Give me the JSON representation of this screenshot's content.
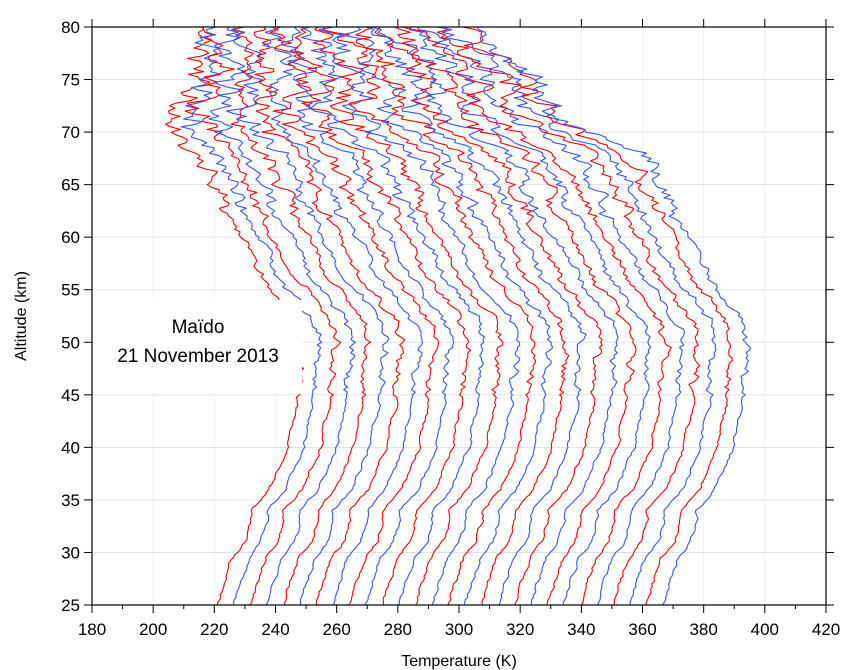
{
  "chart_data": {
    "type": "line",
    "title": "",
    "xlabel": "Temperature (K)",
    "ylabel": "Altitude (km)",
    "xlim": [
      180,
      420
    ],
    "ylim": [
      25,
      80
    ],
    "x_ticks": [
      180,
      200,
      220,
      240,
      260,
      280,
      300,
      320,
      340,
      360,
      380,
      400,
      420
    ],
    "y_ticks": [
      25,
      30,
      35,
      40,
      45,
      50,
      55,
      60,
      65,
      70,
      75,
      80
    ],
    "grid": true,
    "legend": "none",
    "annotation": {
      "lines": [
        "Maïdo",
        "21 November 2013"
      ]
    },
    "series_colors": [
      "#ff0000",
      "#3355ff"
    ],
    "profile_template": {
      "altitude_km": [
        25,
        27,
        29.5,
        31,
        33,
        34,
        36,
        38,
        40,
        42,
        44,
        46,
        48,
        50,
        51,
        52,
        54,
        56,
        58,
        60,
        62,
        64,
        66,
        68,
        70,
        72,
        74,
        76,
        78,
        80
      ],
      "temperature_K": [
        221,
        223,
        226,
        230,
        232,
        232,
        238,
        241,
        244,
        245,
        247,
        247,
        248,
        249,
        248,
        247,
        242,
        236,
        233,
        229,
        225,
        222,
        218,
        214,
        208,
        205,
        212,
        215,
        214,
        215
      ]
    },
    "series": [
      {
        "name": "",
        "color": "#ff0000",
        "offset_K": 0
      },
      {
        "name": "",
        "color": "#3355ff",
        "offset_K": 5.4
      },
      {
        "name": "",
        "color": "#ff0000",
        "offset_K": 10.8
      },
      {
        "name": "",
        "color": "#3355ff",
        "offset_K": 16.2
      },
      {
        "name": "",
        "color": "#ff0000",
        "offset_K": 21.6
      },
      {
        "name": "",
        "color": "#3355ff",
        "offset_K": 27.0
      },
      {
        "name": "",
        "color": "#ff0000",
        "offset_K": 32.4
      },
      {
        "name": "",
        "color": "#3355ff",
        "offset_K": 37.8
      },
      {
        "name": "",
        "color": "#ff0000",
        "offset_K": 43.2
      },
      {
        "name": "",
        "color": "#3355ff",
        "offset_K": 48.6
      },
      {
        "name": "",
        "color": "#ff0000",
        "offset_K": 54.0
      },
      {
        "name": "",
        "color": "#3355ff",
        "offset_K": 59.4
      },
      {
        "name": "",
        "color": "#ff0000",
        "offset_K": 64.8
      },
      {
        "name": "",
        "color": "#3355ff",
        "offset_K": 70.2
      },
      {
        "name": "",
        "color": "#ff0000",
        "offset_K": 75.6
      },
      {
        "name": "",
        "color": "#3355ff",
        "offset_K": 81.0
      },
      {
        "name": "",
        "color": "#ff0000",
        "offset_K": 86.4
      },
      {
        "name": "",
        "color": "#3355ff",
        "offset_K": 91.8
      },
      {
        "name": "",
        "color": "#ff0000",
        "offset_K": 97.2
      },
      {
        "name": "",
        "color": "#3355ff",
        "offset_K": 102.6
      },
      {
        "name": "",
        "color": "#ff0000",
        "offset_K": 108.0
      },
      {
        "name": "",
        "color": "#3355ff",
        "offset_K": 113.4
      },
      {
        "name": "",
        "color": "#ff0000",
        "offset_K": 118.8
      },
      {
        "name": "",
        "color": "#3355ff",
        "offset_K": 124.2
      },
      {
        "name": "",
        "color": "#ff0000",
        "offset_K": 129.6
      },
      {
        "name": "",
        "color": "#3355ff",
        "offset_K": 135.0
      },
      {
        "name": "",
        "color": "#ff0000",
        "offset_K": 140.4
      },
      {
        "name": "",
        "color": "#3355ff",
        "offset_K": 145.8
      }
    ]
  }
}
